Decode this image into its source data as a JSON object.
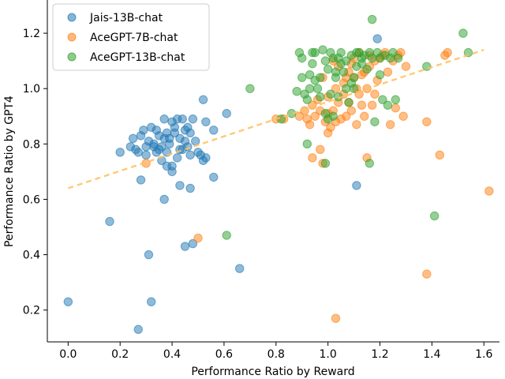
{
  "chart_data": {
    "type": "scatter",
    "title": "",
    "xlabel": "Performance Ratio by Reward",
    "ylabel": "Performance Ratio by GPT4",
    "xlim": [
      -0.08,
      1.66
    ],
    "ylim": [
      0.085,
      1.32
    ],
    "x_ticks": [
      {
        "value": 0.0,
        "label": "0.0"
      },
      {
        "value": 0.2,
        "label": "0.2"
      },
      {
        "value": 0.4,
        "label": "0.4"
      },
      {
        "value": 0.6,
        "label": "0.6"
      },
      {
        "value": 0.8,
        "label": "0.8"
      },
      {
        "value": 1.0,
        "label": "1.0"
      },
      {
        "value": 1.2,
        "label": "1.2"
      },
      {
        "value": 1.4,
        "label": "1.4"
      },
      {
        "value": 1.6,
        "label": "1.6"
      }
    ],
    "y_ticks": [
      {
        "value": 0.2,
        "label": "0.2"
      },
      {
        "value": 0.4,
        "label": "0.4"
      },
      {
        "value": 0.6,
        "label": "0.6"
      },
      {
        "value": 0.8,
        "label": "0.8"
      },
      {
        "value": 1.0,
        "label": "1.0"
      },
      {
        "value": 1.2,
        "label": "1.2"
      }
    ],
    "legend_position": "top-left",
    "trend_line": {
      "x": [
        0.0,
        1.6
      ],
      "y": [
        0.64,
        1.14
      ],
      "color": "#ffbf5c",
      "style": "dashed"
    },
    "series": [
      {
        "name": "Jais-13B-chat",
        "color": "#1f77b4",
        "points": [
          [
            0.0,
            0.23
          ],
          [
            0.16,
            0.52
          ],
          [
            0.2,
            0.77
          ],
          [
            0.27,
            0.13
          ],
          [
            0.28,
            0.67
          ],
          [
            0.31,
            0.4
          ],
          [
            0.32,
            0.23
          ],
          [
            0.24,
            0.79
          ],
          [
            0.25,
            0.82
          ],
          [
            0.26,
            0.78
          ],
          [
            0.27,
            0.77
          ],
          [
            0.28,
            0.83
          ],
          [
            0.29,
            0.85
          ],
          [
            0.3,
            0.76
          ],
          [
            0.31,
            0.81
          ],
          [
            0.32,
            0.86
          ],
          [
            0.33,
            0.79
          ],
          [
            0.34,
            0.85
          ],
          [
            0.35,
            0.78
          ],
          [
            0.36,
            0.74
          ],
          [
            0.37,
            0.89
          ],
          [
            0.38,
            0.84
          ],
          [
            0.39,
            0.8
          ],
          [
            0.4,
            0.88
          ],
          [
            0.41,
            0.86
          ],
          [
            0.42,
            0.89
          ],
          [
            0.43,
            0.82
          ],
          [
            0.44,
            0.89
          ],
          [
            0.45,
            0.85
          ],
          [
            0.46,
            0.79
          ],
          [
            0.47,
            0.84
          ],
          [
            0.48,
            0.89
          ],
          [
            0.49,
            0.81
          ],
          [
            0.5,
            0.77
          ],
          [
            0.36,
            0.79
          ],
          [
            0.38,
            0.77
          ],
          [
            0.4,
            0.72
          ],
          [
            0.42,
            0.75
          ],
          [
            0.43,
            0.78
          ],
          [
            0.45,
            0.81
          ],
          [
            0.47,
            0.76
          ],
          [
            0.39,
            0.82
          ],
          [
            0.41,
            0.84
          ],
          [
            0.44,
            0.78
          ],
          [
            0.46,
            0.86
          ],
          [
            0.37,
            0.82
          ],
          [
            0.33,
            0.8
          ],
          [
            0.35,
            0.83
          ],
          [
            0.3,
            0.79
          ],
          [
            0.34,
            0.77
          ],
          [
            0.38,
            0.72
          ],
          [
            0.4,
            0.7
          ],
          [
            0.43,
            0.65
          ],
          [
            0.47,
            0.64
          ],
          [
            0.37,
            0.6
          ],
          [
            0.52,
            0.74
          ],
          [
            0.53,
            0.75
          ],
          [
            0.51,
            0.76
          ],
          [
            0.52,
            0.96
          ],
          [
            0.56,
            0.68
          ],
          [
            0.56,
            0.85
          ],
          [
            0.61,
            0.91
          ],
          [
            0.53,
            0.88
          ],
          [
            0.45,
            0.43
          ],
          [
            0.48,
            0.44
          ],
          [
            0.66,
            0.35
          ],
          [
            1.11,
            0.65
          ],
          [
            1.19,
            1.18
          ]
        ]
      },
      {
        "name": "AceGPT-7B-chat",
        "color": "#ff7f0e",
        "points": [
          [
            0.3,
            0.73
          ],
          [
            0.5,
            0.46
          ],
          [
            0.8,
            0.89
          ],
          [
            0.83,
            0.89
          ],
          [
            0.92,
            0.89
          ],
          [
            0.93,
            0.87
          ],
          [
            0.94,
            0.94
          ],
          [
            0.95,
            0.9
          ],
          [
            0.97,
            0.92
          ],
          [
            0.99,
            0.88
          ],
          [
            1.0,
            0.97
          ],
          [
            1.01,
            0.86
          ],
          [
            1.02,
            0.92
          ],
          [
            1.03,
            1.0
          ],
          [
            1.04,
            0.95
          ],
          [
            1.05,
            0.89
          ],
          [
            1.06,
            1.02
          ],
          [
            1.07,
            0.9
          ],
          [
            1.08,
            0.95
          ],
          [
            1.09,
            0.92
          ],
          [
            1.1,
            1.04
          ],
          [
            1.11,
            0.87
          ],
          [
            1.12,
            0.98
          ],
          [
            1.13,
            1.05
          ],
          [
            1.14,
            0.9
          ],
          [
            1.15,
            1.0
          ],
          [
            1.16,
            1.08
          ],
          [
            1.17,
            0.94
          ],
          [
            1.18,
            1.1
          ],
          [
            1.19,
            1.03
          ],
          [
            1.2,
            1.11
          ],
          [
            1.21,
            1.12
          ],
          [
            1.22,
            1.13
          ],
          [
            1.23,
            1.06
          ],
          [
            1.24,
            0.87
          ],
          [
            1.25,
            1.1
          ],
          [
            1.26,
            0.93
          ],
          [
            1.27,
            1.12
          ],
          [
            1.28,
            1.13
          ],
          [
            1.29,
            0.9
          ],
          [
            1.3,
            1.08
          ],
          [
            0.96,
            0.96
          ],
          [
            0.98,
            1.04
          ],
          [
            1.0,
            0.84
          ],
          [
            1.02,
            1.1
          ],
          [
            1.04,
            1.08
          ],
          [
            1.06,
            0.98
          ],
          [
            1.08,
            1.06
          ],
          [
            1.1,
            1.11
          ],
          [
            1.12,
            1.13
          ],
          [
            1.14,
            1.06
          ],
          [
            1.16,
            1.12
          ],
          [
            1.18,
            0.98
          ],
          [
            1.03,
            0.88
          ],
          [
            1.09,
            1.09
          ],
          [
            1.11,
            1.0
          ],
          [
            0.97,
            0.78
          ],
          [
            0.94,
            0.75
          ],
          [
            0.98,
            0.73
          ],
          [
            1.03,
            0.17
          ],
          [
            1.15,
            0.75
          ],
          [
            1.38,
            0.33
          ],
          [
            1.38,
            0.88
          ],
          [
            1.43,
            0.76
          ],
          [
            1.45,
            1.12
          ],
          [
            1.46,
            1.13
          ],
          [
            1.62,
            0.63
          ],
          [
            0.89,
            0.9
          ],
          [
            0.91,
            0.92
          ],
          [
            1.0,
            0.91
          ],
          [
            1.07,
            1.04
          ],
          [
            1.13,
            0.94
          ]
        ]
      },
      {
        "name": "AceGPT-13B-chat",
        "color": "#2ca02c",
        "points": [
          [
            0.61,
            0.47
          ],
          [
            0.7,
            1.0
          ],
          [
            0.82,
            0.89
          ],
          [
            0.86,
            0.91
          ],
          [
            0.88,
            0.99
          ],
          [
            0.89,
            1.13
          ],
          [
            0.9,
            1.11
          ],
          [
            0.91,
            0.98
          ],
          [
            0.92,
            0.96
          ],
          [
            0.93,
            1.05
          ],
          [
            0.94,
            1.09
          ],
          [
            0.95,
            1.13
          ],
          [
            0.96,
            1.0
          ],
          [
            0.97,
            1.04
          ],
          [
            0.98,
            1.14
          ],
          [
            0.99,
            0.91
          ],
          [
            1.0,
            1.07
          ],
          [
            1.01,
            0.98
          ],
          [
            1.02,
            1.11
          ],
          [
            1.03,
            1.04
          ],
          [
            1.04,
            0.97
          ],
          [
            1.05,
            1.13
          ],
          [
            1.06,
            1.06
          ],
          [
            1.07,
            1.1
          ],
          [
            1.08,
            0.95
          ],
          [
            1.09,
            1.12
          ],
          [
            1.1,
            1.04
          ],
          [
            1.11,
            1.08
          ],
          [
            1.12,
            1.13
          ],
          [
            1.13,
            1.11
          ],
          [
            1.14,
            1.12
          ],
          [
            1.15,
            1.07
          ],
          [
            1.16,
            1.13
          ],
          [
            1.17,
            1.11
          ],
          [
            1.18,
            0.88
          ],
          [
            1.19,
            1.13
          ],
          [
            1.2,
            1.11
          ],
          [
            1.21,
            0.96
          ],
          [
            1.22,
            1.12
          ],
          [
            1.23,
            0.94
          ],
          [
            1.24,
            1.11
          ],
          [
            1.25,
            1.13
          ],
          [
            1.26,
            0.96
          ],
          [
            1.27,
            1.11
          ],
          [
            0.93,
            1.0
          ],
          [
            0.95,
            1.03
          ],
          [
            0.97,
            0.97
          ],
          [
            0.99,
            1.1
          ],
          [
            1.01,
            1.13
          ],
          [
            1.03,
            1.06
          ],
          [
            1.05,
            1.09
          ],
          [
            1.07,
            1.0
          ],
          [
            1.09,
            1.02
          ],
          [
            1.11,
            1.13
          ],
          [
            1.13,
            1.09
          ],
          [
            0.9,
            1.04
          ],
          [
            1.0,
            0.89
          ],
          [
            1.02,
            0.9
          ],
          [
            0.92,
            0.8
          ],
          [
            0.99,
            0.73
          ],
          [
            1.16,
            0.73
          ],
          [
            1.17,
            1.25
          ],
          [
            1.38,
            1.08
          ],
          [
            1.41,
            0.54
          ],
          [
            1.52,
            1.2
          ],
          [
            1.54,
            1.13
          ],
          [
            0.94,
            1.13
          ],
          [
            1.04,
            1.11
          ],
          [
            1.1,
            1.0
          ],
          [
            1.2,
            1.05
          ]
        ]
      }
    ]
  }
}
